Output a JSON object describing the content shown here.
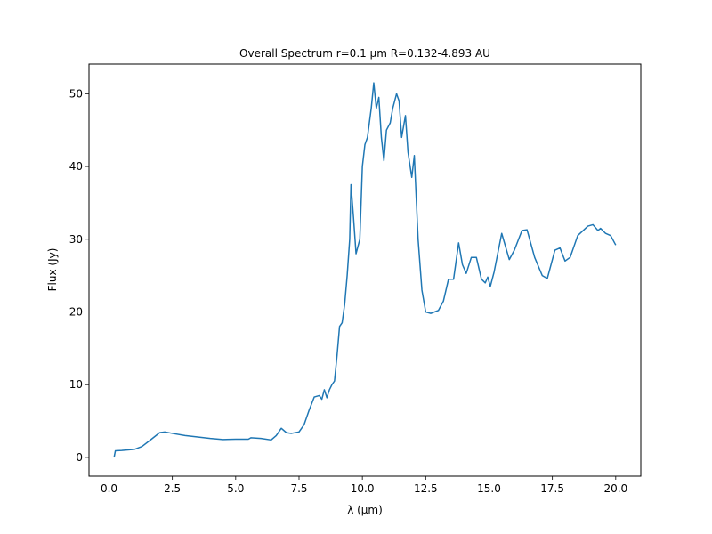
{
  "chart_data": {
    "type": "line",
    "title": "Overall Spectrum r=0.1 μm R=0.132-4.893 AU",
    "x_label": "λ (μm)",
    "y_label": "Flux (Jy)",
    "xlim": [
      -0.79,
      20.99
    ],
    "ylim": [
      -2.58,
      54.08
    ],
    "xticks": [
      {
        "value": 0,
        "label": "0.0"
      },
      {
        "value": 2.5,
        "label": "2.5"
      },
      {
        "value": 5,
        "label": "5.0"
      },
      {
        "value": 7.5,
        "label": "7.5"
      },
      {
        "value": 10,
        "label": "10.0"
      },
      {
        "value": 12.5,
        "label": "12.5"
      },
      {
        "value": 15,
        "label": "15.0"
      },
      {
        "value": 17.5,
        "label": "17.5"
      },
      {
        "value": 20,
        "label": "20.0"
      }
    ],
    "yticks": [
      0,
      10,
      20,
      30,
      40,
      50
    ],
    "grid": false,
    "x": [
      0.2,
      0.25,
      0.5,
      1.0,
      1.3,
      1.6,
      2.0,
      2.2,
      2.5,
      3.0,
      3.5,
      4.0,
      4.5,
      5.0,
      5.5,
      5.6,
      6.0,
      6.4,
      6.6,
      6.8,
      7.0,
      7.2,
      7.5,
      7.7,
      7.9,
      8.1,
      8.3,
      8.4,
      8.5,
      8.6,
      8.7,
      8.8,
      8.9,
      9.0,
      9.1,
      9.2,
      9.3,
      9.4,
      9.5,
      9.55,
      9.65,
      9.75,
      9.9,
      10.0,
      10.1,
      10.2,
      10.35,
      10.45,
      10.55,
      10.65,
      10.75,
      10.85,
      10.95,
      11.1,
      11.2,
      11.35,
      11.45,
      11.55,
      11.7,
      11.8,
      11.95,
      12.05,
      12.2,
      12.35,
      12.5,
      12.7,
      13.0,
      13.2,
      13.4,
      13.6,
      13.8,
      13.95,
      14.1,
      14.3,
      14.5,
      14.7,
      14.85,
      14.95,
      15.05,
      15.2,
      15.5,
      15.8,
      16.0,
      16.3,
      16.5,
      16.8,
      17.1,
      17.3,
      17.6,
      17.8,
      18.0,
      18.2,
      18.5,
      18.9,
      19.1,
      19.3,
      19.4,
      19.6,
      19.8,
      20.0
    ],
    "series": [
      {
        "color": "#1f77b4",
        "values": [
          0,
          0.9,
          0.95,
          1.1,
          1.5,
          2.3,
          3.4,
          3.5,
          3.3,
          3.0,
          2.8,
          2.6,
          2.45,
          2.5,
          2.5,
          2.7,
          2.6,
          2.4,
          3.0,
          4.0,
          3.4,
          3.3,
          3.5,
          4.5,
          6.5,
          8.3,
          8.5,
          8.0,
          9.3,
          8.2,
          9.3,
          10,
          10.5,
          14,
          18,
          18.5,
          21,
          25,
          30,
          37.5,
          33,
          28,
          30,
          40,
          43,
          44,
          48,
          51.5,
          48,
          49.5,
          44,
          40.8,
          45,
          46,
          48,
          50,
          49,
          44,
          47,
          42,
          38.5,
          41.5,
          30,
          23,
          20,
          19.8,
          20.2,
          21.5,
          24.5,
          24.5,
          29.5,
          26.5,
          25.3,
          27.5,
          27.5,
          24.5,
          24,
          24.8,
          23.5,
          25.5,
          30.8,
          27.2,
          28.5,
          31.2,
          31.3,
          27.5,
          25,
          24.6,
          28.5,
          28.8,
          27.0,
          27.5,
          30.5,
          31.8,
          32,
          31.2,
          31.5,
          30.8,
          30.5,
          29.2
        ]
      }
    ]
  }
}
